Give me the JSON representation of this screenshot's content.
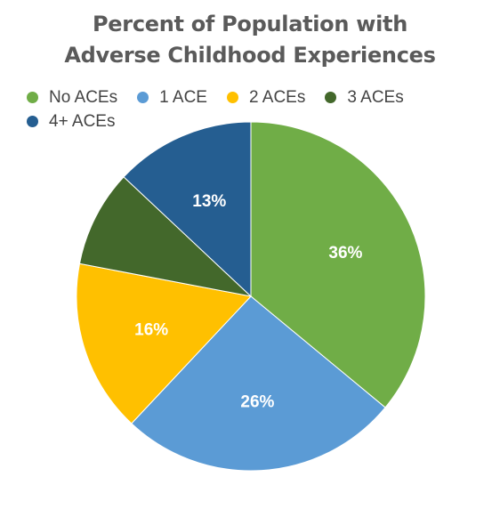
{
  "chart_data": {
    "type": "pie",
    "title_lines": [
      "Percent of Population with",
      "Adverse Childhood Experiences"
    ],
    "legend_position": "top",
    "start_angle": "12 o'clock, clockwise",
    "slices": [
      {
        "label": "No ACEs",
        "value": 36,
        "display": "36%",
        "color": "#70ad47"
      },
      {
        "label": "1 ACE",
        "value": 26,
        "display": "26%",
        "color": "#5b9bd5"
      },
      {
        "label": "2 ACEs",
        "value": 16,
        "display": "16%",
        "color": "#ffc000"
      },
      {
        "label": "3 ACEs",
        "value": 9,
        "display": "",
        "color": "#43682b"
      },
      {
        "label": "4+ ACEs",
        "value": 13,
        "display": "13%",
        "color": "#255e91"
      }
    ]
  }
}
